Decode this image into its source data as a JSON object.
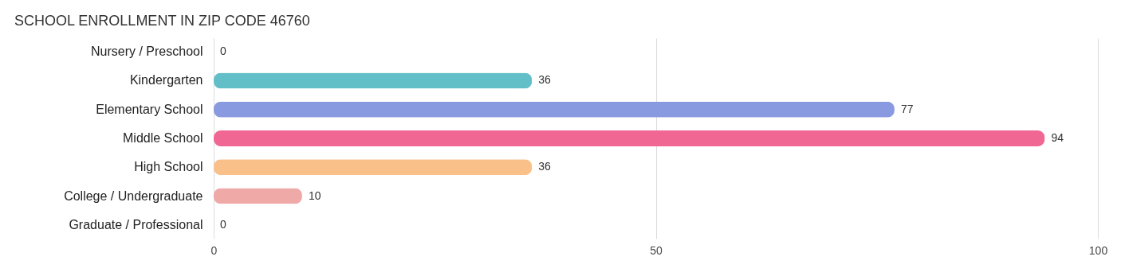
{
  "chart_data": {
    "type": "bar",
    "orientation": "horizontal",
    "title": "SCHOOL ENROLLMENT IN ZIP CODE 46760",
    "categories": [
      "Nursery / Preschool",
      "Kindergarten",
      "Elementary School",
      "Middle School",
      "High School",
      "College / Undergraduate",
      "Graduate / Professional"
    ],
    "values": [
      0,
      36,
      77,
      94,
      36,
      10,
      0
    ],
    "colors": [
      "#d0b4d6",
      "#62bfc8",
      "#8a9ae0",
      "#f06793",
      "#f9c08a",
      "#efaaa8",
      "#a9c8ec"
    ],
    "xlim": [
      0,
      100
    ],
    "xticks": [
      0,
      50,
      100
    ],
    "grid": "x",
    "data_labels": true
  }
}
